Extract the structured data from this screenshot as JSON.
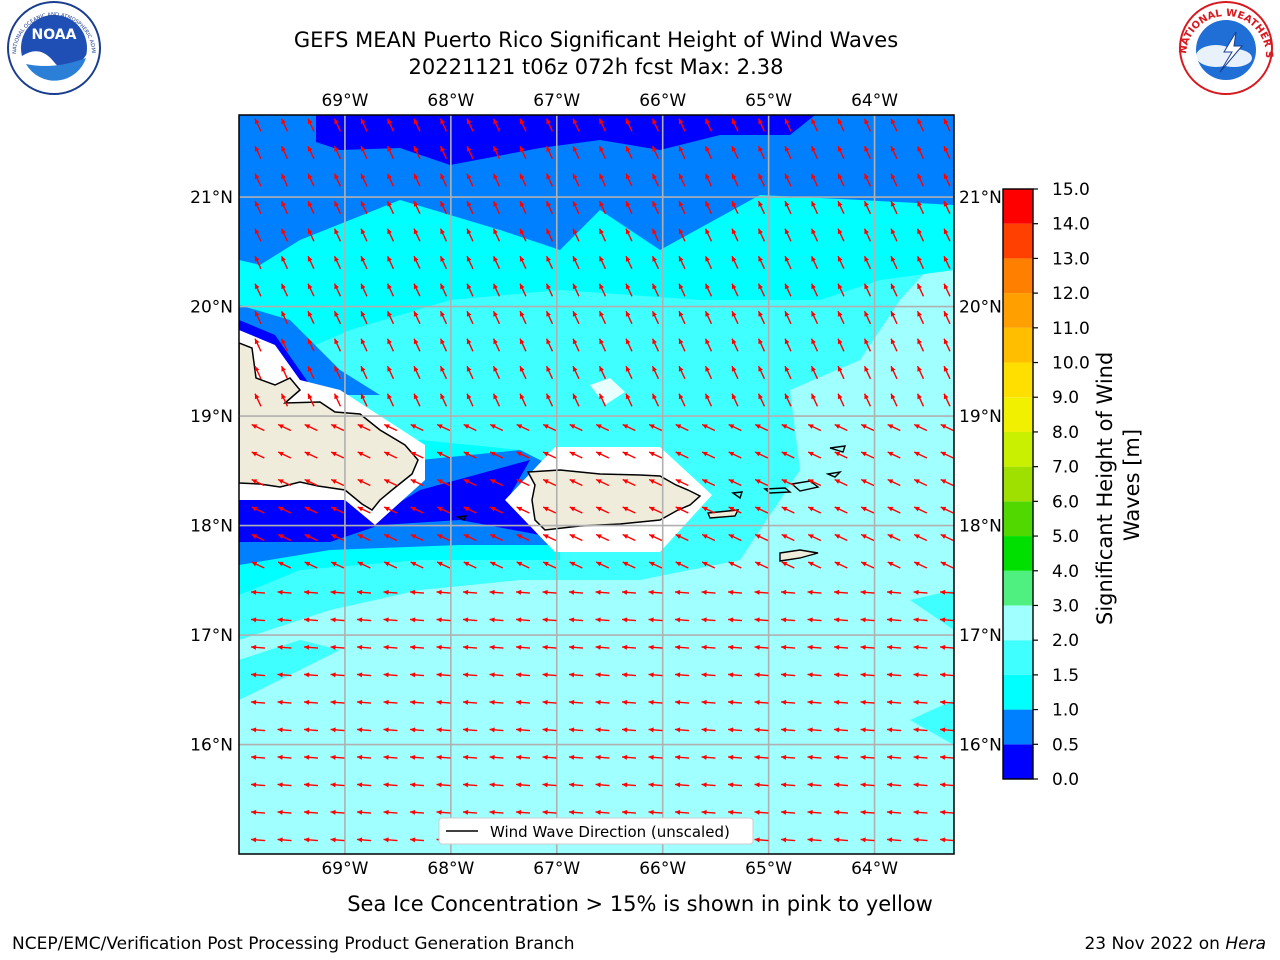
{
  "title": {
    "line1": "GEFS MEAN Puerto Rico Significant Height of Wind Waves",
    "line2": "20221121 t06z 072h fcst   Max: 2.38"
  },
  "map": {
    "lon_range": [
      -70.0,
      -63.25
    ],
    "lat_range": [
      15.0,
      21.75
    ],
    "lon_ticks": [
      {
        "value": -69,
        "label": "69°W"
      },
      {
        "value": -68,
        "label": "68°W"
      },
      {
        "value": -67,
        "label": "67°W"
      },
      {
        "value": -66,
        "label": "66°W"
      },
      {
        "value": -65,
        "label": "65°W"
      },
      {
        "value": -64,
        "label": "64°W"
      }
    ],
    "lat_ticks": [
      {
        "value": 21,
        "label": "21°N"
      },
      {
        "value": 20,
        "label": "20°N"
      },
      {
        "value": 19,
        "label": "19°N"
      },
      {
        "value": 18,
        "label": "18°N"
      },
      {
        "value": 17,
        "label": "17°N"
      },
      {
        "value": 16,
        "label": "16°N"
      }
    ],
    "gridlines": true,
    "legend": {
      "label": "Wind Wave Direction (unscaled)",
      "position": "bottom-center"
    },
    "land_color": "#efecdc",
    "arrow_color": "#ff0000"
  },
  "colorbar": {
    "label": "Significant Height of Wind Waves [m]",
    "levels": [
      0.0,
      0.5,
      1.0,
      1.5,
      2.0,
      3.0,
      4.0,
      5.0,
      6.0,
      7.0,
      8.0,
      9.0,
      10.0,
      11.0,
      12.0,
      13.0,
      14.0,
      15.0
    ],
    "tick_labels": [
      "0.0",
      "0.5",
      "1.0",
      "1.5",
      "2.0",
      "3.0",
      "4.0",
      "5.0",
      "6.0",
      "7.0",
      "8.0",
      "9.0",
      "10.0",
      "11.0",
      "12.0",
      "13.0",
      "14.0",
      "15.0"
    ],
    "colors": [
      "#0000ff",
      "#0080ff",
      "#00ffff",
      "#40ffff",
      "#a0ffff",
      "#50f080",
      "#00e000",
      "#50d800",
      "#a0e000",
      "#c8f000",
      "#f0f000",
      "#ffdf00",
      "#ffbf00",
      "#ff9f00",
      "#ff7f00",
      "#ff4000",
      "#ff0000"
    ]
  },
  "chart_data": {
    "type": "heatmap",
    "variable": "Significant Height of Wind Waves",
    "units": "m",
    "max": 2.38,
    "wave_height_bands_by_region": [
      {
        "region": "north edge near 21.5N",
        "band_m": [
          0.0,
          0.5
        ]
      },
      {
        "region": "20.5N - 21.5N",
        "band_m": [
          0.5,
          1.0
        ]
      },
      {
        "region": "19.5N - 20.5N",
        "band_m": [
          1.0,
          1.5
        ]
      },
      {
        "region": "18.2N - 19.5N",
        "band_m": [
          1.5,
          2.0
        ]
      },
      {
        "region": "Mona Passage 18.0N - 18.5N",
        "band_m": [
          0.0,
          0.5
        ]
      },
      {
        "region": "south 15N - 17.7N",
        "band_m": [
          2.0,
          3.0
        ]
      }
    ],
    "arrow_direction": "toward south-west to west"
  },
  "footer": {
    "note": "Sea Ice Concentration > 15% is shown in pink to yellow",
    "left": "NCEP/EMC/Verification Post Processing Product Generation Branch",
    "right_prefix": "23 Nov 2022 on ",
    "right_host": "Hera"
  },
  "logos": {
    "noaa": {
      "text": "NOAA",
      "ring_text": "NATIONAL OCEANIC AND ATMOSPHERIC ADMINISTRATION · U.S. DEPARTMENT OF COMMERCE"
    },
    "nws": {
      "ring_text": "NATIONAL WEATHER SERVICE"
    }
  }
}
